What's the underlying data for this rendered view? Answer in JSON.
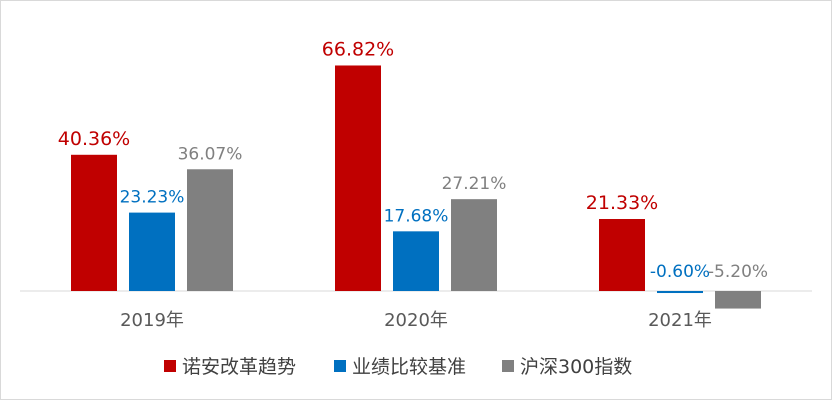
{
  "chart_data": {
    "type": "bar",
    "categories": [
      "2019年",
      "2020年",
      "2021年"
    ],
    "series": [
      {
        "name": "诺安改革趋势",
        "color": "#c00000",
        "label_color": "#c00000",
        "values": [
          40.36,
          66.82,
          21.33
        ],
        "labels": [
          "40.36%",
          "66.82%",
          "21.33%"
        ]
      },
      {
        "name": "业绩比较基准",
        "color": "#0070c0",
        "label_color": "#0070c0",
        "values": [
          23.23,
          17.68,
          -0.6
        ],
        "labels": [
          "23.23%",
          "17.68%",
          "-0.60%"
        ]
      },
      {
        "name": "沪深300指数",
        "color": "#808080",
        "label_color": "#808080",
        "values": [
          36.07,
          27.21,
          -5.2
        ],
        "labels": [
          "36.07%",
          "27.21%",
          "-5.20%"
        ]
      }
    ],
    "title": "",
    "xlabel": "",
    "ylabel": "",
    "ylim": [
      -10,
      70
    ],
    "grid": false,
    "legend": "bottom"
  }
}
